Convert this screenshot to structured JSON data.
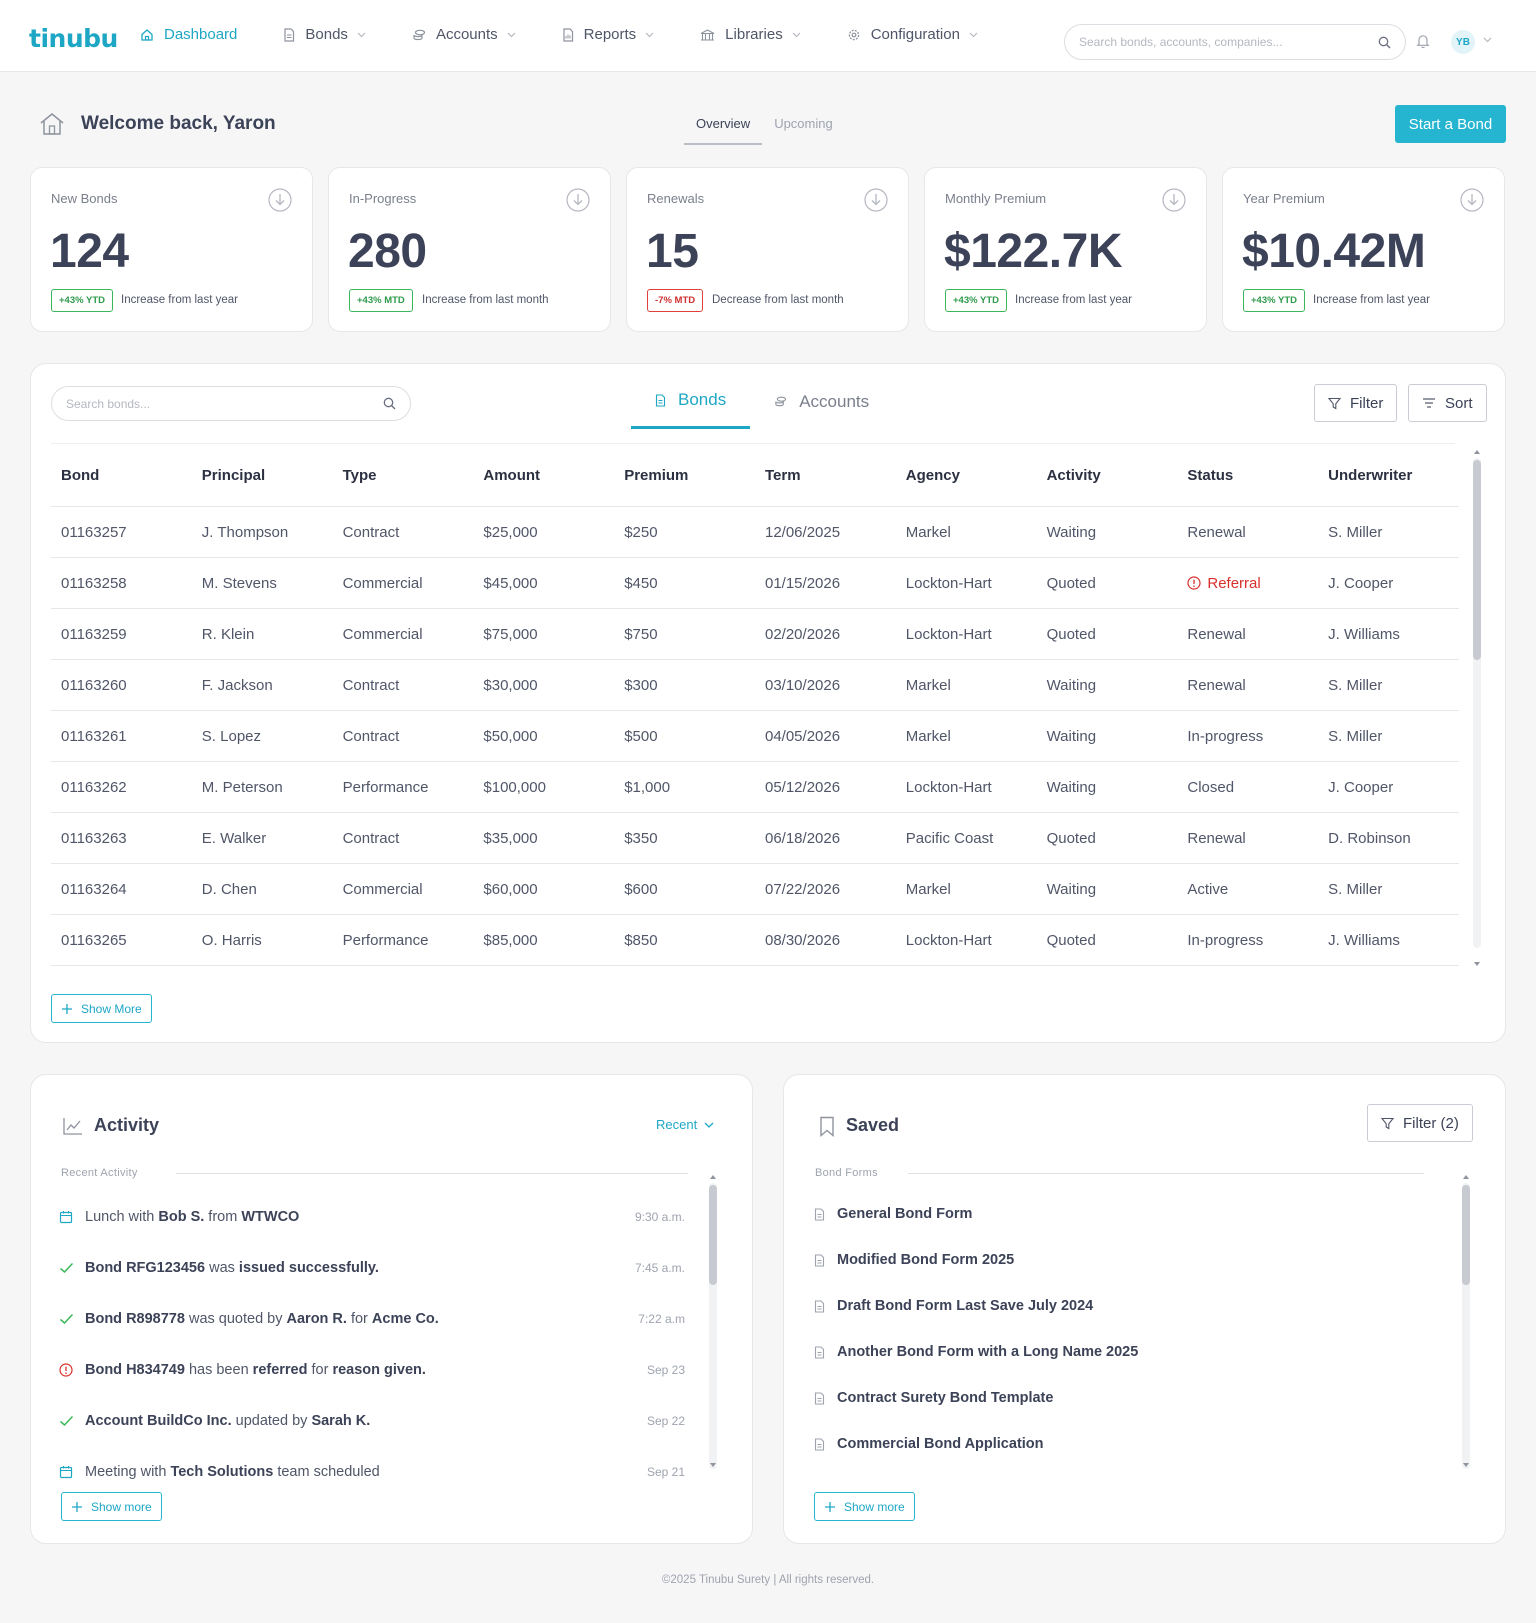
{
  "brand": {
    "logo": "tinubu",
    "accent": "#1ea7c5"
  },
  "nav": {
    "items": [
      {
        "label": "Dashboard",
        "icon": "home-icon",
        "active": true
      },
      {
        "label": "Bonds",
        "icon": "document-icon"
      },
      {
        "label": "Accounts",
        "icon": "coins-icon"
      },
      {
        "label": "Reports",
        "icon": "report-icon"
      },
      {
        "label": "Libraries",
        "icon": "library-icon"
      },
      {
        "label": "Configuration",
        "icon": "gear-icon"
      }
    ],
    "search_placeholder": "Search bonds, accounts, companies...",
    "avatar_initials": "YB"
  },
  "header": {
    "welcome": "Welcome back, Yaron",
    "tabs": [
      "Overview",
      "Upcoming"
    ],
    "active_tab": "Overview",
    "start_button": "Start a Bond"
  },
  "stats": [
    {
      "label": "New Bonds",
      "value": "124",
      "badge": "+43% YTD",
      "trend": "positive",
      "note": "Increase from last year"
    },
    {
      "label": "In-Progress",
      "value": "280",
      "badge": "+43% MTD",
      "trend": "positive",
      "note": "Increase from last month"
    },
    {
      "label": "Renewals",
      "value": "15",
      "badge": "-7% MTD",
      "trend": "negative",
      "note": "Decrease from last month"
    },
    {
      "label": "Monthly Premium",
      "value": "$122.7K",
      "badge": "+43% YTD",
      "trend": "positive",
      "note": "Increase from last year"
    },
    {
      "label": "Year Premium",
      "value": "$10.42M",
      "badge": "+43% YTD",
      "trend": "positive",
      "note": "Increase from last year"
    }
  ],
  "bonds_panel": {
    "search_placeholder": "Search bonds...",
    "tabs": [
      "Bonds",
      "Accounts"
    ],
    "active_tab": "Bonds",
    "filter_label": "Filter",
    "sort_label": "Sort",
    "columns": [
      "Bond",
      "Principal",
      "Type",
      "Amount",
      "Premium",
      "Term",
      "Agency",
      "Activity",
      "Status",
      "Underwriter"
    ],
    "rows": [
      [
        "01163257",
        "J. Thompson",
        "Contract",
        "$25,000",
        "$250",
        "12/06/2025",
        "Markel",
        "Waiting",
        "Renewal",
        "S. Miller"
      ],
      [
        "01163258",
        "M. Stevens",
        "Commercial",
        "$45,000",
        "$450",
        "01/15/2026",
        "Lockton-Hart",
        "Quoted",
        "Referral",
        "J. Cooper"
      ],
      [
        "01163259",
        "R. Klein",
        "Commercial",
        "$75,000",
        "$750",
        "02/20/2026",
        "Lockton-Hart",
        "Quoted",
        "Renewal",
        "J. Williams"
      ],
      [
        "01163260",
        "F. Jackson",
        "Contract",
        "$30,000",
        "$300",
        "03/10/2026",
        "Markel",
        "Waiting",
        "Renewal",
        "S. Miller"
      ],
      [
        "01163261",
        "S. Lopez",
        "Contract",
        "$50,000",
        "$500",
        "04/05/2026",
        "Markel",
        "Waiting",
        "In-progress",
        "S. Miller"
      ],
      [
        "01163262",
        "M. Peterson",
        "Performance",
        "$100,000",
        "$1,000",
        "05/12/2026",
        "Lockton-Hart",
        "Waiting",
        "Closed",
        "J. Cooper"
      ],
      [
        "01163263",
        "E. Walker",
        "Contract",
        "$35,000",
        "$350",
        "06/18/2026",
        "Pacific Coast",
        "Quoted",
        "Renewal",
        "D. Robinson"
      ],
      [
        "01163264",
        "D. Chen",
        "Commercial",
        "$60,000",
        "$600",
        "07/22/2026",
        "Markel",
        "Waiting",
        "Active",
        "S. Miller"
      ],
      [
        "01163265",
        "O. Harris",
        "Performance",
        "$85,000",
        "$850",
        "08/30/2026",
        "Lockton-Hart",
        "Quoted",
        "In-progress",
        "J. Williams"
      ]
    ],
    "show_more": "Show More"
  },
  "activity": {
    "title": "Activity",
    "dropdown": "Recent",
    "section": "Recent Activity",
    "items": [
      {
        "icon": "calendar-icon",
        "parts": [
          [
            "Lunch with ",
            false
          ],
          [
            "Bob S.",
            true
          ],
          [
            " from ",
            false
          ],
          [
            "WTWCO",
            true
          ]
        ],
        "time": "9:30 a.m."
      },
      {
        "icon": "check-icon",
        "parts": [
          [
            "Bond RFG123456",
            true
          ],
          [
            " was ",
            false
          ],
          [
            "issued successfully.",
            true
          ]
        ],
        "time": "7:45 a.m."
      },
      {
        "icon": "check-icon",
        "parts": [
          [
            "Bond R898778",
            true
          ],
          [
            " was quoted by ",
            false
          ],
          [
            "Aaron R.",
            true
          ],
          [
            " for ",
            false
          ],
          [
            "Acme Co.",
            true
          ]
        ],
        "time": "7:22 a.m"
      },
      {
        "icon": "alert-icon",
        "parts": [
          [
            "Bond H834749",
            true
          ],
          [
            " has been ",
            false
          ],
          [
            "referred",
            true
          ],
          [
            " for ",
            false
          ],
          [
            "reason given.",
            true
          ]
        ],
        "time": "Sep 23"
      },
      {
        "icon": "check-icon",
        "parts": [
          [
            "Account BuildCo Inc.",
            true
          ],
          [
            " updated by ",
            false
          ],
          [
            "Sarah K.",
            true
          ]
        ],
        "time": "Sep 22"
      },
      {
        "icon": "calendar-icon",
        "parts": [
          [
            "Meeting with ",
            false
          ],
          [
            "Tech Solutions",
            true
          ],
          [
            " team scheduled",
            false
          ]
        ],
        "time": "Sep 21"
      }
    ],
    "show_more": "Show more"
  },
  "saved": {
    "title": "Saved",
    "filter_label": "Filter (2)",
    "section": "Bond Forms",
    "items": [
      "General Bond Form",
      "Modified Bond Form 2025",
      "Draft Bond Form Last Save July 2024",
      "Another Bond Form with a Long Name 2025",
      "Contract Surety Bond Template",
      "Commercial Bond Application"
    ],
    "show_more": "Show more"
  },
  "footer": "©2025 Tinubu Surety | All rights reserved."
}
